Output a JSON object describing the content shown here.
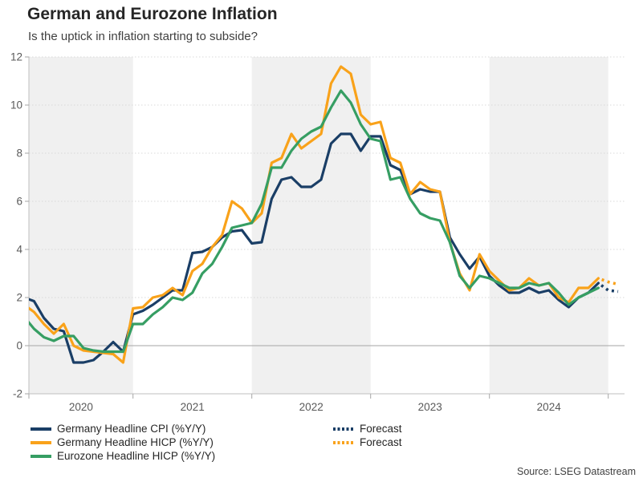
{
  "header": {
    "title": "German and Eurozone Inflation",
    "subtitle": "Is the uptick in inflation starting to subside?"
  },
  "chart_data": {
    "type": "line",
    "title": "German and Eurozone Inflation",
    "subtitle": "Is the uptick in inflation starting to subside?",
    "x_start_month": "2020-02",
    "forecast_months": [
      "2025-01",
      "2025-02"
    ],
    "ylim": [
      -2,
      12
    ],
    "yticks": [
      -2,
      0,
      2,
      4,
      6,
      8,
      10,
      12
    ],
    "year_labels": [
      "2020",
      "2021",
      "2022",
      "2023",
      "2024"
    ],
    "shaded_years": [
      "2020",
      "2022",
      "2024"
    ],
    "grid": "dotted-horizontal",
    "zero_line": true,
    "legend_position": "bottom",
    "series": [
      {
        "name": "Germany Headline CPI (%Y/Y)",
        "color": "#1a3e66",
        "values": [
          2.0,
          1.85,
          1.15,
          0.7,
          0.6,
          -0.7,
          -0.7,
          -0.6,
          -0.25,
          0.15,
          -0.25,
          1.3,
          1.45,
          1.7,
          2.0,
          2.3,
          2.3,
          3.85,
          3.9,
          4.1,
          4.5,
          4.75,
          4.8,
          4.25,
          4.3,
          6.1,
          6.9,
          7.0,
          6.6,
          6.6,
          6.9,
          8.4,
          8.8,
          8.8,
          8.1,
          8.7,
          8.7,
          7.5,
          7.3,
          6.3,
          6.5,
          6.4,
          6.4,
          4.5,
          3.8,
          3.2,
          3.7,
          2.9,
          2.5,
          2.2,
          2.2,
          2.4,
          2.2,
          2.3,
          1.9,
          1.6,
          2.0,
          2.2,
          2.6
        ],
        "forecast": [
          2.3,
          2.25
        ]
      },
      {
        "name": "Germany Headline HICP (%Y/Y)",
        "color": "#f9a21a",
        "values": [
          1.7,
          1.4,
          0.9,
          0.5,
          0.9,
          0.0,
          -0.2,
          -0.25,
          -0.3,
          -0.35,
          -0.7,
          1.55,
          1.6,
          2.0,
          2.1,
          2.4,
          2.1,
          3.1,
          3.4,
          4.1,
          4.6,
          6.0,
          5.7,
          5.1,
          5.5,
          7.6,
          7.8,
          8.8,
          8.2,
          8.5,
          8.8,
          10.9,
          11.6,
          11.3,
          9.6,
          9.2,
          9.3,
          7.8,
          7.6,
          6.3,
          6.8,
          6.5,
          6.4,
          4.3,
          3.0,
          2.3,
          3.8,
          3.1,
          2.7,
          2.3,
          2.4,
          2.8,
          2.5,
          2.6,
          2.0,
          1.8,
          2.4,
          2.4,
          2.8
        ],
        "forecast": [
          2.65,
          2.55
        ]
      },
      {
        "name": "Eurozone Headline HICP (%Y/Y)",
        "color": "#369e63",
        "values": [
          1.2,
          0.7,
          0.35,
          0.2,
          0.4,
          0.4,
          -0.1,
          -0.2,
          -0.25,
          -0.25,
          -0.25,
          0.9,
          0.9,
          1.3,
          1.6,
          2.0,
          1.9,
          2.2,
          3.0,
          3.4,
          4.1,
          4.9,
          5.0,
          5.1,
          5.9,
          7.4,
          7.4,
          8.1,
          8.6,
          8.9,
          9.1,
          9.9,
          10.6,
          10.1,
          9.2,
          8.6,
          8.5,
          6.9,
          7.0,
          6.1,
          5.5,
          5.3,
          5.2,
          4.3,
          2.9,
          2.4,
          2.9,
          2.8,
          2.6,
          2.4,
          2.4,
          2.6,
          2.5,
          2.6,
          2.2,
          1.7,
          2.0,
          2.2,
          2.4
        ],
        "forecast": []
      }
    ],
    "legend": [
      {
        "label": "Germany Headline CPI (%Y/Y)",
        "color": "#1a3e66",
        "dashed": false,
        "column": "left",
        "row": 0
      },
      {
        "label": "Germany Headline HICP (%Y/Y)",
        "color": "#f9a21a",
        "dashed": false,
        "column": "left",
        "row": 1
      },
      {
        "label": "Eurozone Headline HICP (%Y/Y)",
        "color": "#369e63",
        "dashed": false,
        "column": "left",
        "row": 2
      },
      {
        "label": "Forecast",
        "color": "#1a3e66",
        "dashed": true,
        "column": "right",
        "row": 0
      },
      {
        "label": "Forecast",
        "color": "#f9a21a",
        "dashed": true,
        "column": "right",
        "row": 1
      }
    ],
    "colors": {
      "band": "#f0f0f0",
      "axis": "#bfbfbf",
      "tick": "#a6a6a6",
      "zero_line": "#a6a6a6",
      "gridline": "#d9d9d9",
      "tick_label": "#595959"
    }
  },
  "footer": {
    "source": "Source: LSEG Datastream"
  }
}
